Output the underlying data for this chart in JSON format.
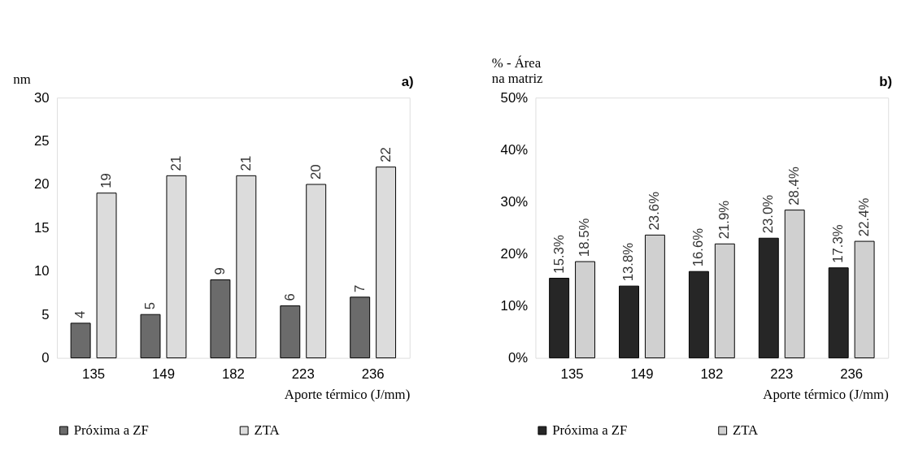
{
  "chart_data": [
    {
      "type": "bar",
      "ylabel": "nm",
      "xlabel": "Aporte térmico (J/mm)",
      "annotations": [
        "a)"
      ],
      "categories": [
        "135",
        "149",
        "182",
        "223",
        "236"
      ],
      "series": [
        {
          "name": "Próxima a ZF",
          "color": "#6b6b6b",
          "values": [
            4,
            5,
            9,
            6,
            7
          ]
        },
        {
          "name": "ZTA",
          "color": "#dcdcdc",
          "values": [
            19,
            21,
            21,
            20,
            22
          ]
        }
      ],
      "ylim": [
        0,
        30
      ],
      "yticks": [
        0,
        5,
        10,
        15,
        20,
        25,
        30
      ],
      "data_labels": true,
      "legend": "bottom",
      "grid": false
    },
    {
      "type": "bar",
      "ylabel": "% - Área\nna matriz",
      "xlabel": "Aporte térmico (J/mm)",
      "annotations": [
        "b)"
      ],
      "categories": [
        "135",
        "149",
        "182",
        "223",
        "236"
      ],
      "series": [
        {
          "name": "Próxima a ZF",
          "color": "#262626",
          "values": [
            15.3,
            13.8,
            16.6,
            23.0,
            17.3
          ],
          "value_labels": [
            "15.3%",
            "13.8%",
            "16.6%",
            "23.0%",
            "17.3%"
          ]
        },
        {
          "name": "ZTA",
          "color": "#d0d0d0",
          "values": [
            18.5,
            23.6,
            21.9,
            28.4,
            22.4
          ],
          "value_labels": [
            "18.5%",
            "23.6%",
            "21.9%",
            "28.4%",
            "22.4%"
          ]
        }
      ],
      "ylim": [
        0,
        50
      ],
      "yticks": [
        {
          "value": 0,
          "label": "0%"
        },
        {
          "value": 10,
          "label": "10%"
        },
        {
          "value": 20,
          "label": "20%"
        },
        {
          "value": 30,
          "label": "30%"
        },
        {
          "value": 40,
          "label": "40%"
        },
        {
          "value": 50,
          "label": "50%"
        }
      ],
      "legend": "bottom",
      "grid": false
    }
  ]
}
